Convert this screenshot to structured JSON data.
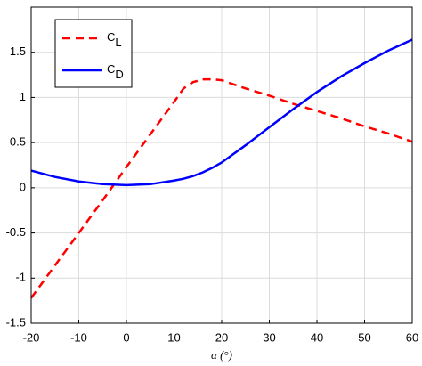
{
  "chart_data": {
    "type": "line",
    "xlabel": "α (°)",
    "x": [
      -20,
      -15,
      -10,
      -5,
      0,
      5,
      10,
      12,
      14,
      16,
      18,
      20,
      25,
      30,
      35,
      40,
      45,
      50,
      55,
      60
    ],
    "series": [
      {
        "name": "CL",
        "color": "#ff0000",
        "dash": true,
        "values": [
          -1.22,
          -0.86,
          -0.5,
          -0.14,
          0.23,
          0.59,
          0.95,
          1.1,
          1.17,
          1.2,
          1.2,
          1.19,
          1.1,
          1.02,
          0.93,
          0.85,
          0.77,
          0.68,
          0.6,
          0.51
        ]
      },
      {
        "name": "CD",
        "color": "#0000ff",
        "dash": false,
        "values": [
          0.19,
          0.12,
          0.07,
          0.04,
          0.03,
          0.04,
          0.08,
          0.1,
          0.13,
          0.17,
          0.22,
          0.28,
          0.47,
          0.67,
          0.87,
          1.06,
          1.23,
          1.38,
          1.52,
          1.64
        ]
      }
    ],
    "xlim": [
      -20,
      60
    ],
    "xticks": [
      -20,
      -10,
      0,
      10,
      20,
      30,
      40,
      50,
      60
    ],
    "ylim": [
      -1.5,
      2
    ],
    "yticks": [
      -1.5,
      -1,
      -0.5,
      0,
      0.5,
      1,
      1.5
    ],
    "grid": true
  }
}
